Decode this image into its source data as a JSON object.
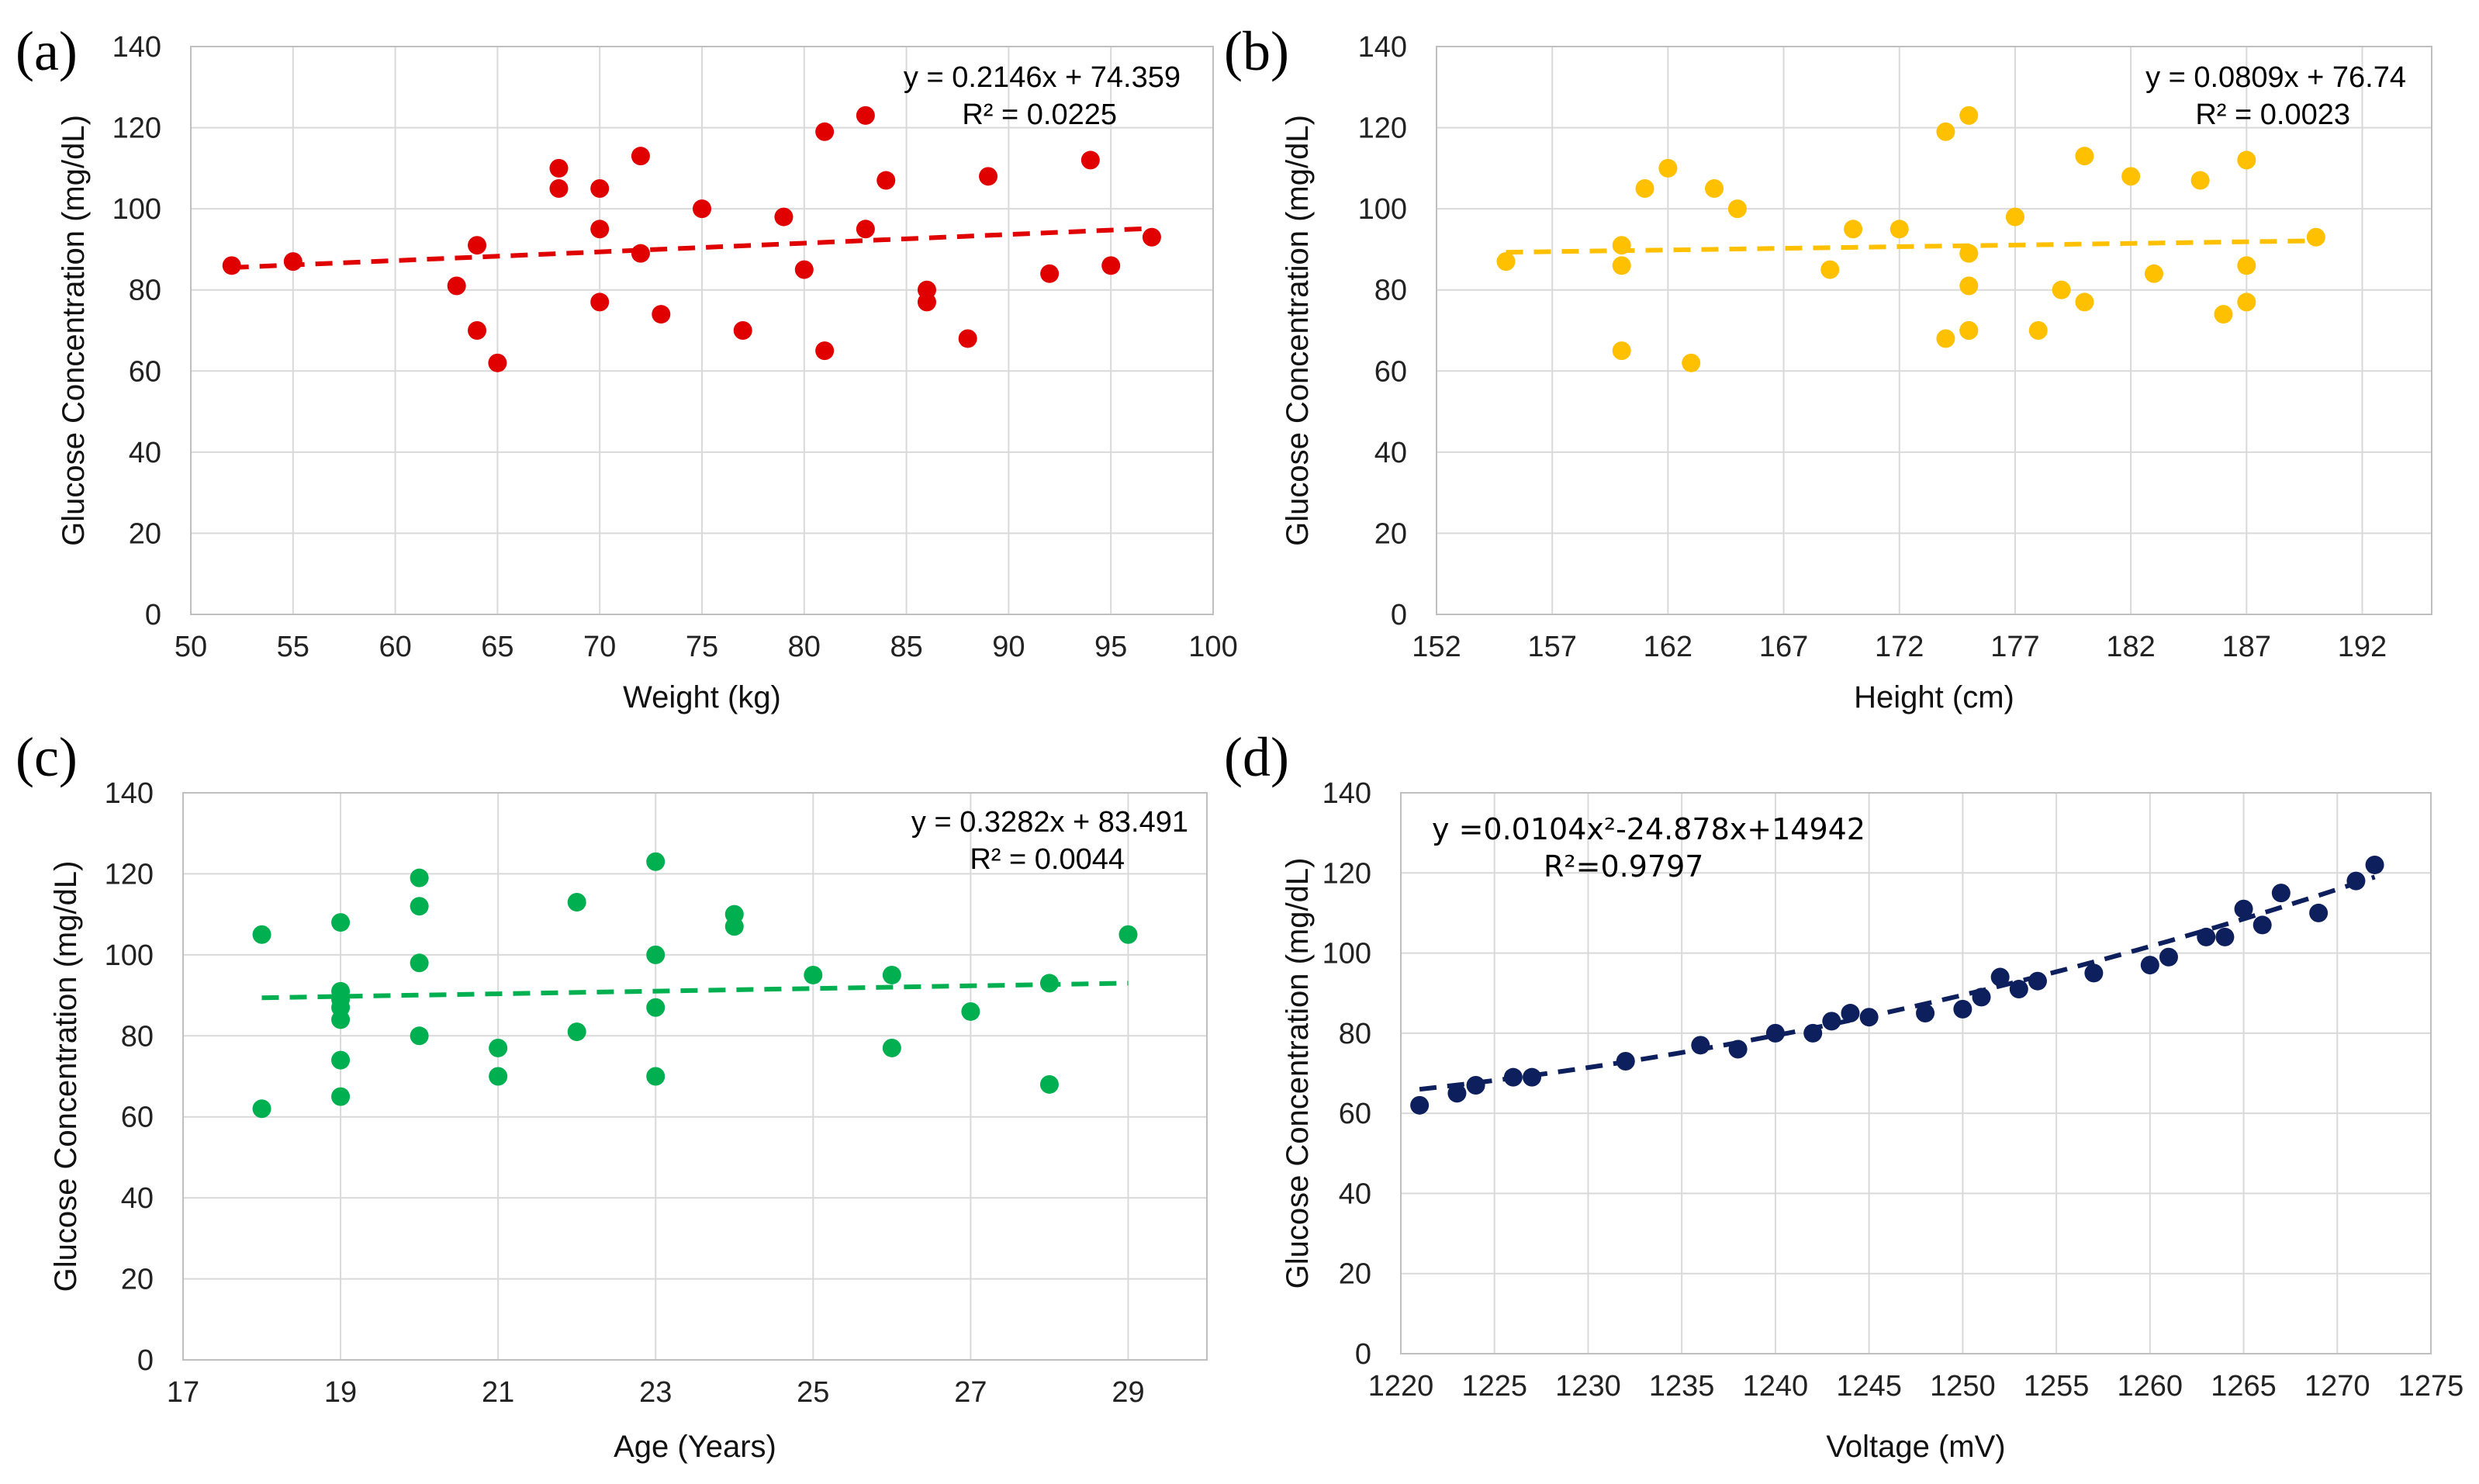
{
  "chart_data": [
    {
      "panel_label": "(a)",
      "type": "scatter",
      "title": "",
      "xlabel": "Weight (kg)",
      "ylabel": "Glucose Concentration (mg/dL)",
      "xlim": [
        50,
        100
      ],
      "ylim": [
        0,
        140
      ],
      "xticks": [
        50,
        55,
        60,
        65,
        70,
        75,
        80,
        85,
        90,
        95,
        100
      ],
      "yticks": [
        0,
        20,
        40,
        60,
        80,
        100,
        120,
        140
      ],
      "grid": true,
      "color": "#e00000",
      "x": [
        52,
        55,
        63,
        64,
        64,
        65,
        68,
        68,
        70,
        70,
        70,
        72,
        72,
        73,
        75,
        77,
        79,
        80,
        81,
        81,
        83,
        83,
        84,
        86,
        86,
        88,
        89,
        92,
        94,
        95,
        97
      ],
      "y": [
        86,
        87,
        81,
        91,
        70,
        62,
        110,
        105,
        105,
        95,
        77,
        113,
        89,
        74,
        100,
        70,
        98,
        85,
        119,
        65,
        123,
        95,
        107,
        80,
        77,
        68,
        108,
        84,
        112,
        86,
        93
      ],
      "trendline": {
        "type": "linear",
        "slope": 0.2146,
        "intercept": 74.359,
        "x_range": [
          52,
          97
        ]
      },
      "equation": "y = 0.2146x + 74.359",
      "r2": "R² = 0.0225"
    },
    {
      "panel_label": "(b)",
      "type": "scatter",
      "title": "",
      "xlabel": "Height (cm)",
      "ylabel": "Glucose Concentration (mg/dL)",
      "xlim": [
        152,
        195
      ],
      "ylim": [
        0,
        140
      ],
      "xticks": [
        152,
        157,
        162,
        167,
        172,
        177,
        182,
        187,
        192
      ],
      "yticks": [
        0,
        20,
        40,
        60,
        80,
        100,
        120,
        140
      ],
      "grid": true,
      "color": "#ffc000",
      "x": [
        155,
        160,
        160,
        160,
        161,
        162,
        163,
        164,
        165,
        169,
        170,
        172,
        174,
        174,
        175,
        175,
        175,
        175,
        175,
        177,
        178,
        179,
        180,
        180,
        182,
        183,
        185,
        186,
        187,
        187,
        187,
        190
      ],
      "y": [
        87,
        91,
        86,
        65,
        105,
        110,
        62,
        105,
        100,
        85,
        95,
        95,
        119,
        68,
        123,
        89,
        81,
        70,
        70,
        98,
        70,
        80,
        113,
        77,
        108,
        84,
        107,
        74,
        112,
        86,
        77,
        93
      ],
      "trendline": {
        "type": "linear",
        "slope": 0.0809,
        "intercept": 76.74,
        "x_range": [
          155,
          190
        ]
      },
      "equation": "y = 0.0809x + 76.74",
      "r2": "R² = 0.0023"
    },
    {
      "panel_label": "(c)",
      "type": "scatter",
      "title": "",
      "xlabel": "Age (Years)",
      "ylabel": "Glucose Concentration (mg/dL)",
      "xlim": [
        17,
        30
      ],
      "ylim": [
        0,
        140
      ],
      "xticks": [
        17,
        19,
        21,
        23,
        25,
        27,
        29
      ],
      "yticks": [
        0,
        20,
        40,
        60,
        80,
        100,
        120,
        140
      ],
      "grid": true,
      "color": "#00b050",
      "x": [
        18,
        18,
        19,
        19,
        19,
        19,
        19,
        19,
        19,
        20,
        20,
        20,
        20,
        21,
        21,
        22,
        22,
        23,
        23,
        23,
        23,
        24,
        24,
        25,
        26,
        26,
        27,
        28,
        28,
        29
      ],
      "y": [
        105,
        62,
        108,
        91,
        89,
        87,
        84,
        74,
        65,
        119,
        112,
        98,
        80,
        77,
        70,
        113,
        81,
        123,
        100,
        87,
        70,
        110,
        107,
        95,
        95,
        77,
        86,
        93,
        68,
        105
      ],
      "trendline": {
        "type": "linear",
        "slope": 0.3282,
        "intercept": 83.491,
        "x_range": [
          18,
          29
        ]
      },
      "equation": "y = 0.3282x + 83.491",
      "r2": "R² = 0.0044"
    },
    {
      "panel_label": "(d)",
      "type": "scatter",
      "title": "",
      "xlabel": "Voltage (mV)",
      "ylabel": "Glucose Concentration (mg/dL)",
      "xlim": [
        1220,
        1275
      ],
      "ylim": [
        0,
        140
      ],
      "xticks": [
        1220,
        1225,
        1230,
        1235,
        1240,
        1245,
        1250,
        1255,
        1260,
        1265,
        1270,
        1275
      ],
      "yticks": [
        0,
        20,
        40,
        60,
        80,
        100,
        120,
        140
      ],
      "grid": true,
      "color": "#0d1f5c",
      "x": [
        1221,
        1223,
        1224,
        1226,
        1227,
        1232,
        1236,
        1238,
        1240,
        1242,
        1243,
        1244,
        1245,
        1248,
        1250,
        1251,
        1252,
        1253,
        1254,
        1257,
        1260,
        1261,
        1263,
        1264,
        1265,
        1266,
        1267,
        1269,
        1271,
        1272
      ],
      "y": [
        62,
        65,
        67,
        69,
        69,
        73,
        77,
        76,
        80,
        80,
        83,
        85,
        84,
        85,
        86,
        89,
        94,
        91,
        93,
        95,
        97,
        99,
        104,
        104,
        111,
        107,
        115,
        110,
        118,
        122
      ],
      "trendline": {
        "type": "poly2",
        "a": 0.0104,
        "b": -24.878,
        "c": 14942,
        "x_range": [
          1221,
          1272
        ],
        "fitted_ends": [
          66,
          119
        ]
      },
      "equation": "y =0.0104x²-24.878x+14942",
      "r2": "R²=0.9797"
    }
  ]
}
